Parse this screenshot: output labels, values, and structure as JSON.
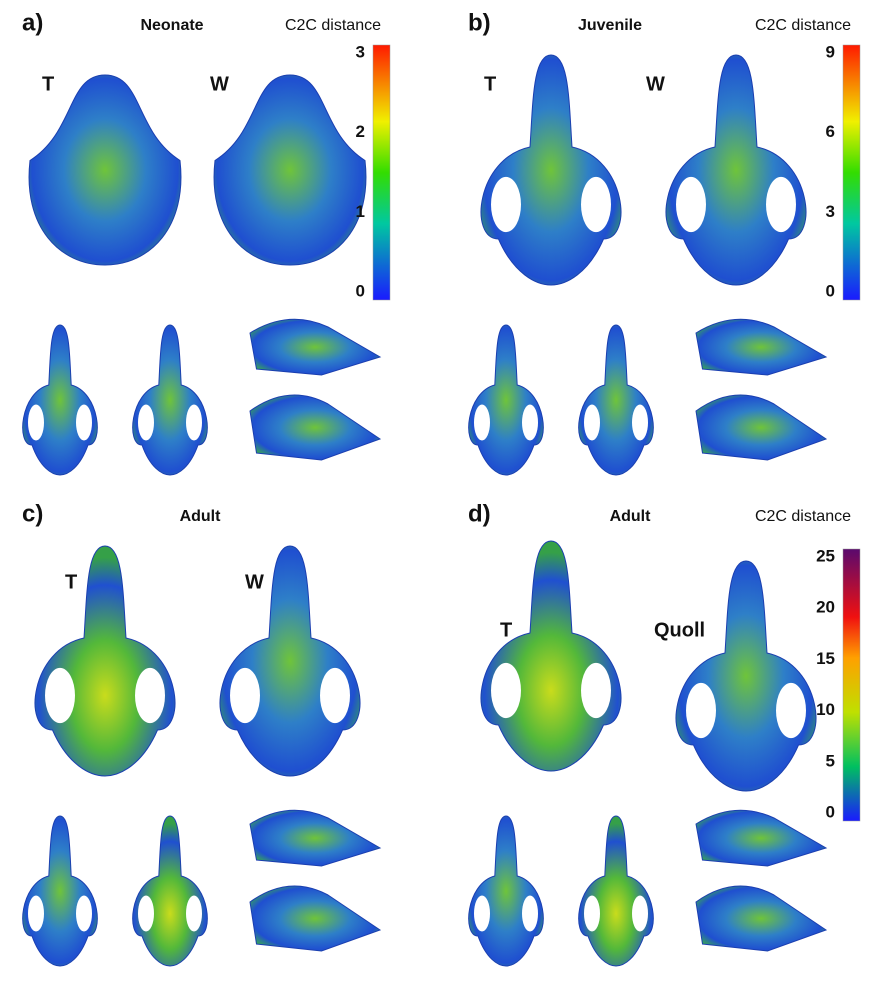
{
  "panels": [
    {
      "label": "a)",
      "title": "Neonate",
      "colorbar": {
        "title": "C2C distance",
        "ticks": [
          3,
          2,
          1,
          0
        ]
      },
      "specimens": [
        "T",
        "W"
      ]
    },
    {
      "label": "b)",
      "title": "Juvenile",
      "colorbar": {
        "title": "C2C distance",
        "ticks": [
          9,
          6,
          3,
          0
        ]
      },
      "specimens": [
        "T",
        "W"
      ]
    },
    {
      "label": "c)",
      "title": "Adult",
      "specimens": [
        "T",
        "W"
      ]
    },
    {
      "label": "d)",
      "title": "Adult",
      "colorbar": {
        "title": "C2C distance",
        "ticks": [
          25,
          20,
          15,
          10,
          5,
          0
        ]
      },
      "specimens": [
        "T",
        "Quoll"
      ]
    }
  ]
}
